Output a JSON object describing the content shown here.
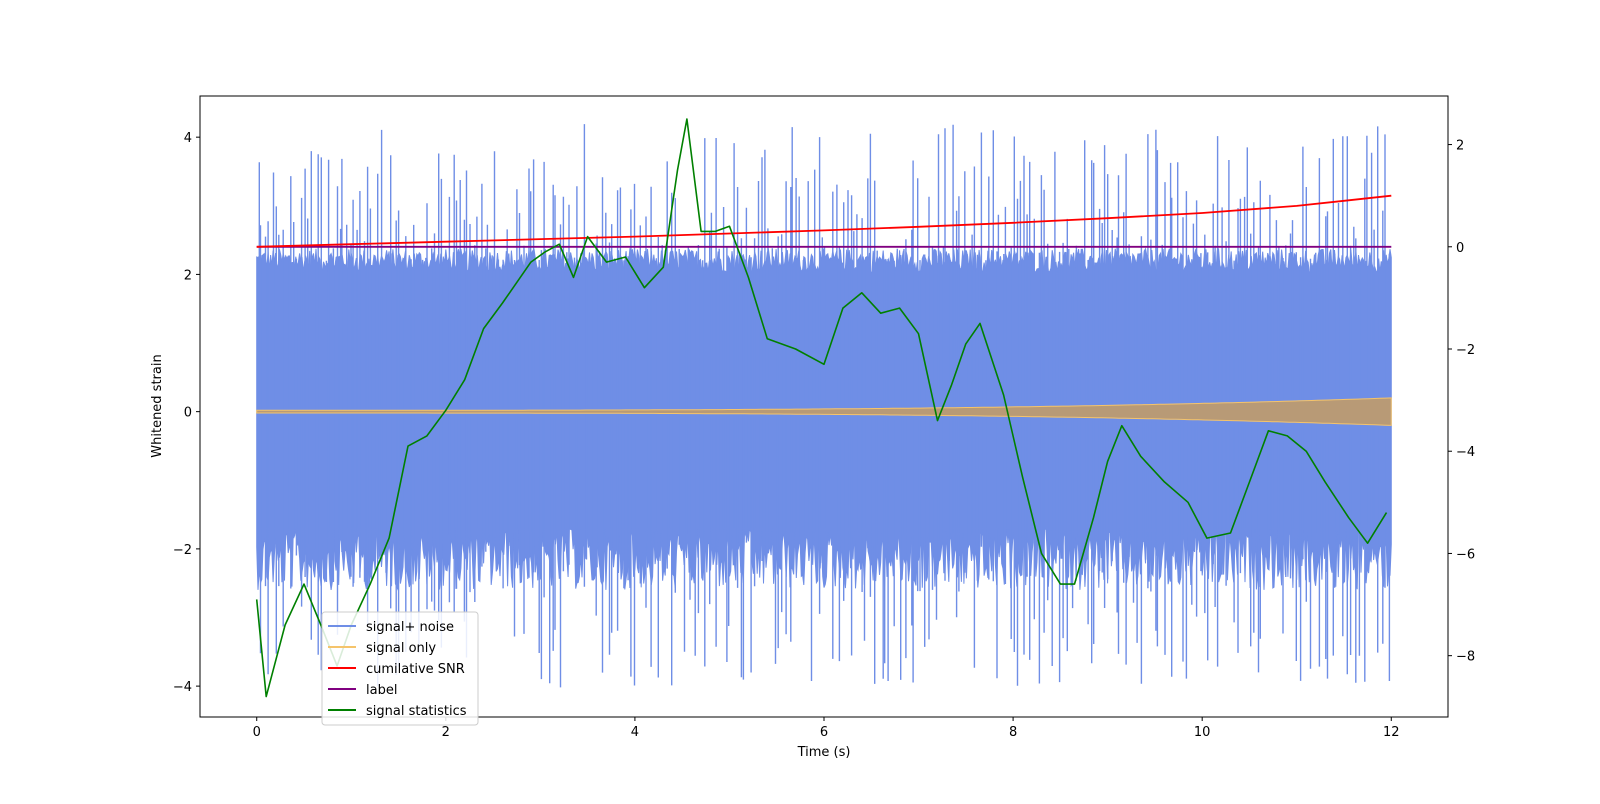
{
  "chart_data": {
    "type": "line",
    "xlabel": "Time (s)",
    "ylabel": "Whitened strain",
    "xlim": [
      -0.6,
      12.6
    ],
    "ylim": [
      -4.45,
      4.6
    ],
    "y2lim": [
      -9.2,
      2.95
    ],
    "xticks": [
      "0",
      "2",
      "4",
      "6",
      "8",
      "10",
      "12"
    ],
    "yticks": [
      "−4",
      "−2",
      "0",
      "2",
      "4"
    ],
    "y2ticks": [
      "−8",
      "−6",
      "−4",
      "−2",
      "0",
      "2"
    ],
    "grid": false,
    "legend_position": "lower-left",
    "series": [
      {
        "name": "signal+ noise",
        "axis": "left",
        "color": "#6f8ee6",
        "style": "dense noisy trace",
        "x_range": [
          0,
          12
        ],
        "typical_band": [
          -1.7,
          2.2
        ],
        "peak_max": 4.2,
        "peak_min": -4.05
      },
      {
        "name": "signal only",
        "axis": "left",
        "color": "#f5c46b",
        "style": "chirp oscillation",
        "x_range": [
          0,
          12
        ],
        "amplitude_start": 0.02,
        "amplitude_end": 0.2
      },
      {
        "name": "cumilative SNR",
        "axis": "right",
        "color": "#ff0000",
        "x": [
          0,
          1,
          2,
          3,
          4,
          5,
          6,
          7,
          8,
          9,
          10,
          11,
          11.5,
          12
        ],
        "y": [
          0.0,
          0.05,
          0.1,
          0.15,
          0.2,
          0.26,
          0.32,
          0.39,
          0.47,
          0.56,
          0.66,
          0.8,
          0.9,
          1.0
        ]
      },
      {
        "name": "label",
        "axis": "right",
        "color": "#800080",
        "x": [
          0,
          12
        ],
        "y": [
          0,
          0
        ]
      },
      {
        "name": "signal statistics",
        "axis": "right",
        "color": "#008000",
        "x": [
          0,
          0.1,
          0.3,
          0.5,
          0.7,
          0.85,
          1.0,
          1.2,
          1.4,
          1.6,
          1.8,
          2.0,
          2.2,
          2.4,
          2.6,
          2.75,
          2.9,
          3.05,
          3.2,
          3.35,
          3.5,
          3.7,
          3.9,
          4.1,
          4.3,
          4.45,
          4.55,
          4.7,
          4.85,
          5.0,
          5.2,
          5.4,
          5.7,
          6.0,
          6.2,
          6.4,
          6.6,
          6.8,
          7.0,
          7.2,
          7.35,
          7.5,
          7.65,
          7.9,
          8.1,
          8.3,
          8.5,
          8.65,
          8.85,
          9.0,
          9.15,
          9.35,
          9.6,
          9.85,
          10.05,
          10.3,
          10.5,
          10.7,
          10.9,
          11.1,
          11.3,
          11.55,
          11.75,
          11.95
        ],
        "y": [
          -6.9,
          -8.8,
          -7.4,
          -6.6,
          -7.5,
          -8.2,
          -7.4,
          -6.6,
          -5.7,
          -3.9,
          -3.7,
          -3.2,
          -2.6,
          -1.6,
          -1.1,
          -0.7,
          -0.3,
          -0.1,
          0.05,
          -0.6,
          0.2,
          -0.3,
          -0.2,
          -0.8,
          -0.4,
          1.5,
          2.5,
          0.3,
          0.3,
          0.4,
          -0.6,
          -1.8,
          -2.0,
          -2.3,
          -1.2,
          -0.9,
          -1.3,
          -1.2,
          -1.7,
          -3.4,
          -2.7,
          -1.9,
          -1.5,
          -2.9,
          -4.5,
          -6.0,
          -6.6,
          -6.6,
          -5.3,
          -4.2,
          -3.5,
          -4.1,
          -4.6,
          -5.0,
          -5.7,
          -5.6,
          -4.6,
          -3.6,
          -3.7,
          -4.0,
          -4.6,
          -5.3,
          -5.8,
          -5.2
        ]
      }
    ]
  }
}
